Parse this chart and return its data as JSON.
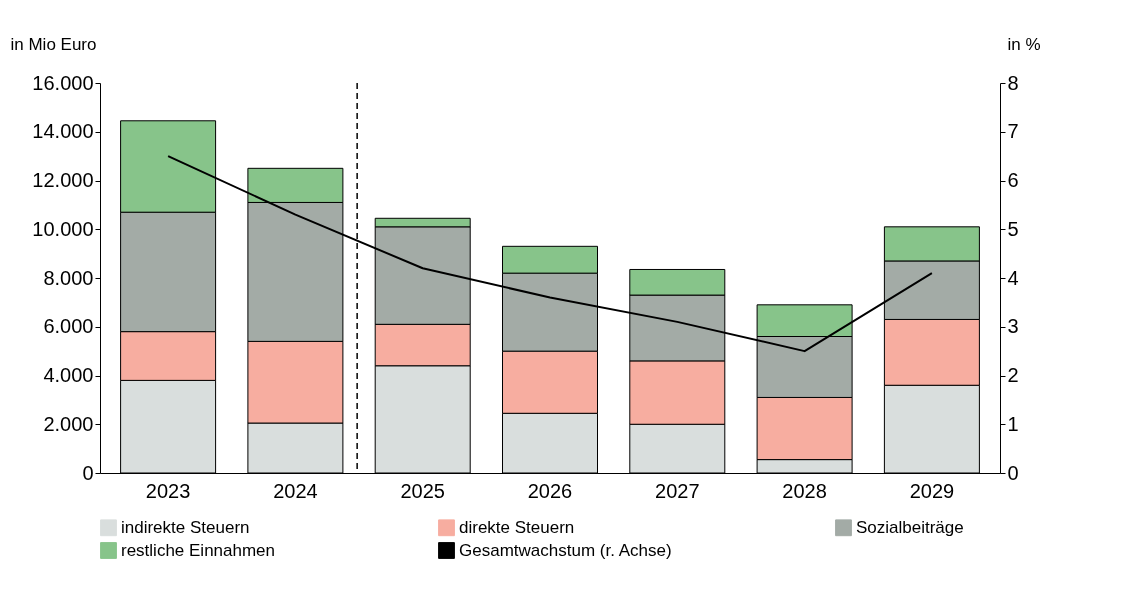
{
  "chart_data": {
    "type": "bar",
    "stacked": true,
    "ylabel": "in Mio Euro",
    "y2label": "in %",
    "categories": [
      "2023",
      "2024",
      "2025",
      "2026",
      "2027",
      "2028",
      "2029"
    ],
    "series": [
      {
        "name": "indirekte Steuern",
        "color": "#d9dedd",
        "values": [
          3800,
          2050,
          4400,
          2450,
          2000,
          550,
          3600
        ]
      },
      {
        "name": "direkte Steuern",
        "color": "#f7ada0",
        "values": [
          2000,
          3350,
          1700,
          2550,
          2600,
          2550,
          2700
        ]
      },
      {
        "name": "Sozialbeiträge",
        "color": "#a3aba6",
        "values": [
          4900,
          5700,
          4000,
          3200,
          2700,
          2500,
          2400
        ]
      },
      {
        "name": "restliche Einnahmen",
        "color": "#87c48a",
        "values": [
          3750,
          1400,
          350,
          1100,
          1050,
          1300,
          1400
        ]
      },
      {
        "name": "Gesamtwachstum (r. Achse)",
        "type": "line",
        "axis": "y2",
        "color": "#000000",
        "values": [
          6.5,
          5.3,
          4.2,
          3.6,
          3.1,
          2.5,
          4.1
        ]
      }
    ],
    "ylim": [
      0,
      16000
    ],
    "yticks": [
      {
        "value": 0,
        "label": "0"
      },
      {
        "value": 2000,
        "label": "2.000"
      },
      {
        "value": 4000,
        "label": "4.000"
      },
      {
        "value": 6000,
        "label": "6.000"
      },
      {
        "value": 8000,
        "label": "8.000"
      },
      {
        "value": 10000,
        "label": "10.000"
      },
      {
        "value": 12000,
        "label": "12.000"
      },
      {
        "value": 14000,
        "label": "14.000"
      },
      {
        "value": 16000,
        "label": "16.000"
      }
    ],
    "y2lim": [
      0,
      8
    ],
    "y2ticks": [
      0,
      1,
      2,
      3,
      4,
      5,
      6,
      7,
      8
    ],
    "legend": "bottom",
    "grid": false,
    "marker": "none",
    "line_style": "solid"
  }
}
